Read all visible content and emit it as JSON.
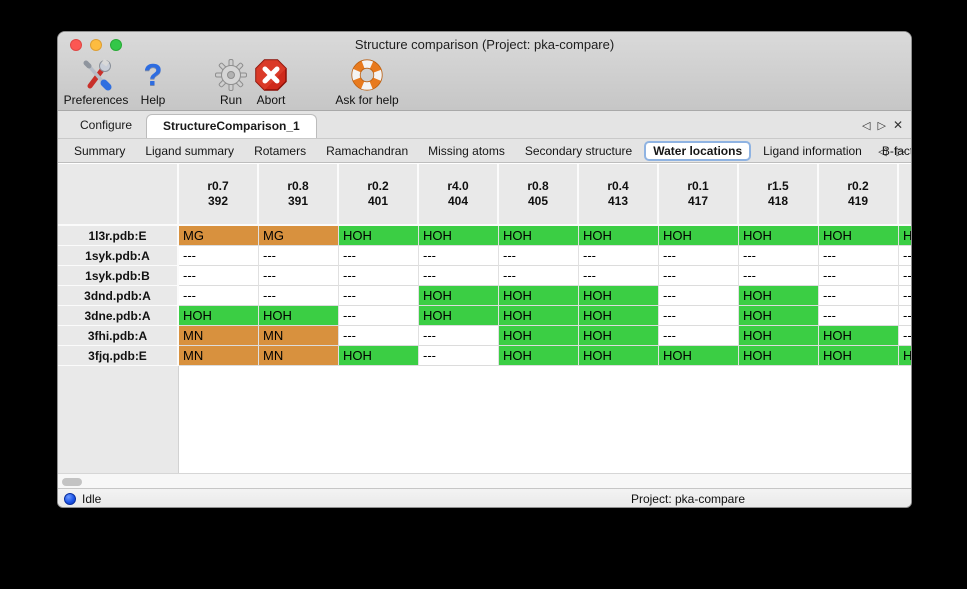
{
  "window": {
    "title": "Structure comparison (Project: pka-compare)"
  },
  "toolbar": {
    "items": [
      {
        "label": "Preferences",
        "icon": "tools-icon"
      },
      {
        "label": "Help",
        "icon": "question-icon"
      },
      {
        "label": "Run",
        "icon": "gear-icon"
      },
      {
        "label": "Abort",
        "icon": "abort-icon"
      },
      {
        "label": "Ask for help",
        "icon": "lifebuoy-icon"
      }
    ]
  },
  "tab_nav": {
    "left": "◁",
    "right": "▷",
    "close": "✕"
  },
  "tabs": {
    "items": [
      {
        "label": "Configure",
        "selected": false
      },
      {
        "label": "StructureComparison_1",
        "selected": true
      }
    ]
  },
  "subtabs": {
    "selected": "Water locations",
    "items": [
      "Summary",
      "Ligand summary",
      "Rotamers",
      "Ramachandran",
      "Missing atoms",
      "Secondary structure",
      "Water locations",
      "Ligand information",
      "B-factors"
    ]
  },
  "table": {
    "columns": [
      [
        "r0.7",
        "392"
      ],
      [
        "r0.8",
        "391"
      ],
      [
        "r0.2",
        "401"
      ],
      [
        "r4.0",
        "404"
      ],
      [
        "r0.8",
        "405"
      ],
      [
        "r0.4",
        "413"
      ],
      [
        "r0.1",
        "417"
      ],
      [
        "r1.5",
        "418"
      ],
      [
        "r0.2",
        "419"
      ],
      [
        "",
        ""
      ]
    ],
    "rows": [
      {
        "label": "1l3r.pdb:E",
        "cells": [
          [
            "MG",
            "orange"
          ],
          [
            "MG",
            "orange"
          ],
          [
            "HOH",
            "green"
          ],
          [
            "HOH",
            "green"
          ],
          [
            "HOH",
            "green"
          ],
          [
            "HOH",
            "green"
          ],
          [
            "HOH",
            "green"
          ],
          [
            "HOH",
            "green"
          ],
          [
            "HOH",
            "green"
          ],
          [
            "HOH",
            "green"
          ]
        ]
      },
      {
        "label": "1syk.pdb:A",
        "cells": [
          [
            "---",
            "plain"
          ],
          [
            "---",
            "plain"
          ],
          [
            "---",
            "plain"
          ],
          [
            "---",
            "plain"
          ],
          [
            "---",
            "plain"
          ],
          [
            "---",
            "plain"
          ],
          [
            "---",
            "plain"
          ],
          [
            "---",
            "plain"
          ],
          [
            "---",
            "plain"
          ],
          [
            "---",
            "plain"
          ]
        ]
      },
      {
        "label": "1syk.pdb:B",
        "cells": [
          [
            "---",
            "plain"
          ],
          [
            "---",
            "plain"
          ],
          [
            "---",
            "plain"
          ],
          [
            "---",
            "plain"
          ],
          [
            "---",
            "plain"
          ],
          [
            "---",
            "plain"
          ],
          [
            "---",
            "plain"
          ],
          [
            "---",
            "plain"
          ],
          [
            "---",
            "plain"
          ],
          [
            "---",
            "plain"
          ]
        ]
      },
      {
        "label": "3dnd.pdb:A",
        "cells": [
          [
            "---",
            "plain"
          ],
          [
            "---",
            "plain"
          ],
          [
            "---",
            "plain"
          ],
          [
            "HOH",
            "green"
          ],
          [
            "HOH",
            "green"
          ],
          [
            "HOH",
            "green"
          ],
          [
            "---",
            "plain"
          ],
          [
            "HOH",
            "green"
          ],
          [
            "---",
            "plain"
          ],
          [
            "---",
            "plain"
          ]
        ]
      },
      {
        "label": "3dne.pdb:A",
        "cells": [
          [
            "HOH",
            "green"
          ],
          [
            "HOH",
            "green"
          ],
          [
            "---",
            "plain"
          ],
          [
            "HOH",
            "green"
          ],
          [
            "HOH",
            "green"
          ],
          [
            "HOH",
            "green"
          ],
          [
            "---",
            "plain"
          ],
          [
            "HOH",
            "green"
          ],
          [
            "---",
            "plain"
          ],
          [
            "---",
            "plain"
          ]
        ]
      },
      {
        "label": "3fhi.pdb:A",
        "cells": [
          [
            "MN",
            "orange"
          ],
          [
            "MN",
            "orange"
          ],
          [
            "---",
            "plain"
          ],
          [
            "---",
            "plain"
          ],
          [
            "HOH",
            "green"
          ],
          [
            "HOH",
            "green"
          ],
          [
            "---",
            "plain"
          ],
          [
            "HOH",
            "green"
          ],
          [
            "HOH",
            "green"
          ],
          [
            "---",
            "plain"
          ]
        ]
      },
      {
        "label": "3fjq.pdb:E",
        "cells": [
          [
            "MN",
            "orange"
          ],
          [
            "MN",
            "orange"
          ],
          [
            "HOH",
            "green"
          ],
          [
            "---",
            "plain"
          ],
          [
            "HOH",
            "green"
          ],
          [
            "HOH",
            "green"
          ],
          [
            "HOH",
            "green"
          ],
          [
            "HOH",
            "green"
          ],
          [
            "HOH",
            "green"
          ],
          [
            "HOH",
            "green"
          ]
        ]
      }
    ]
  },
  "statusbar": {
    "status": "Idle",
    "project": "Project: pka-compare"
  },
  "colors": {
    "green": "#3bce44",
    "orange": "#d8913e"
  }
}
